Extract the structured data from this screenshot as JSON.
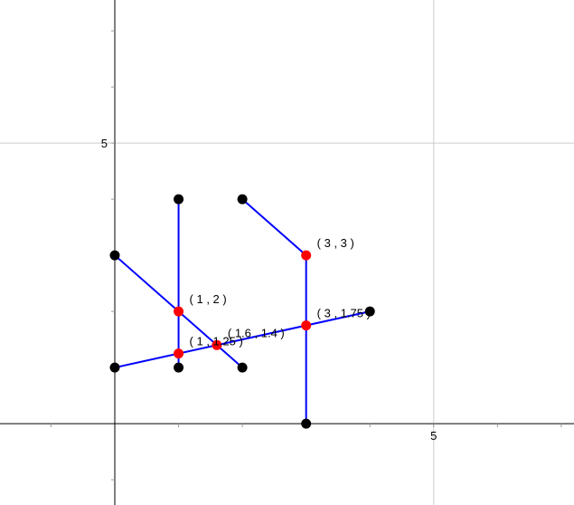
{
  "chart_data": {
    "type": "scatter",
    "xlim": [
      -1.8,
      7.2
    ],
    "ylim": [
      -1.45,
      7.55
    ],
    "grid": true,
    "major_grid_step": 5,
    "minor_tick_step": 1,
    "x_tick_labels": [
      {
        "value": 5,
        "label": "5"
      }
    ],
    "y_tick_labels": [
      {
        "value": 5,
        "label": "5"
      }
    ],
    "colors": {
      "axis": "#000000",
      "grid": "#cccccc",
      "minor_tick": "#999999",
      "segment": "#0000ff",
      "point": "#000000",
      "intersection": "#ff0000"
    },
    "segments": [
      {
        "from": [
          1,
          4
        ],
        "to": [
          1,
          1
        ]
      },
      {
        "from": [
          0,
          3
        ],
        "to": [
          2,
          1
        ]
      },
      {
        "from": [
          2,
          4
        ],
        "to": [
          3,
          3
        ]
      },
      {
        "from": [
          3,
          3
        ],
        "to": [
          3,
          0
        ]
      },
      {
        "from": [
          0,
          1
        ],
        "to": [
          4,
          2
        ]
      }
    ],
    "points": [
      {
        "x": 1,
        "y": 4
      },
      {
        "x": 1,
        "y": 1
      },
      {
        "x": 0,
        "y": 3
      },
      {
        "x": 2,
        "y": 1
      },
      {
        "x": 2,
        "y": 4
      },
      {
        "x": 3,
        "y": 0
      },
      {
        "x": 0,
        "y": 1
      },
      {
        "x": 4,
        "y": 2
      }
    ],
    "intersections": [
      {
        "x": 3,
        "y": 3,
        "label": "( 3 , 3 )"
      },
      {
        "x": 1,
        "y": 2,
        "label": "( 1 , 2 )"
      },
      {
        "x": 1.6,
        "y": 1.4,
        "label": "( 1.6 , 1.4 )"
      },
      {
        "x": 1,
        "y": 1.25,
        "label": "( 1 , 1.25 )"
      },
      {
        "x": 3,
        "y": 1.75,
        "label": "( 3 , 1.75 )"
      }
    ]
  }
}
